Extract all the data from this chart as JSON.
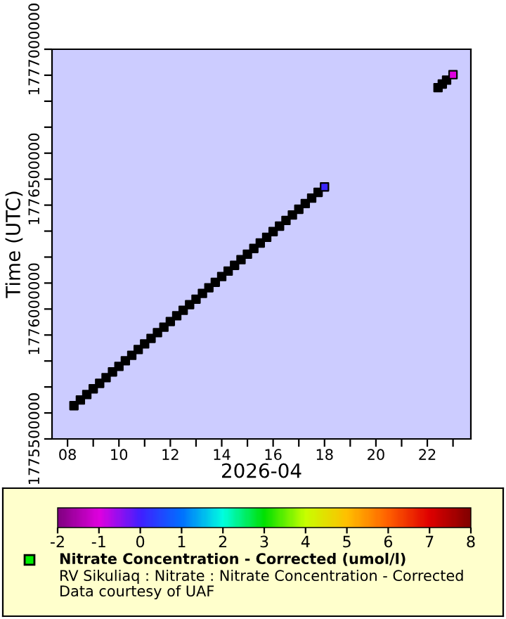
{
  "chart_data": {
    "type": "scatter",
    "xlabel": "2026-04",
    "ylabel": "Time (UTC)",
    "xlim": [
      "2026-04-07T09:30",
      "2026-04-23T16:40"
    ],
    "xticks": [
      {
        "value": "2026-04-08",
        "label": "08"
      },
      {
        "value": "2026-04-09",
        "label": null
      },
      {
        "value": "2026-04-10",
        "label": "10"
      },
      {
        "value": "2026-04-11",
        "label": null
      },
      {
        "value": "2026-04-12",
        "label": "12"
      },
      {
        "value": "2026-04-13",
        "label": null
      },
      {
        "value": "2026-04-14",
        "label": "14"
      },
      {
        "value": "2026-04-15",
        "label": null
      },
      {
        "value": "2026-04-16",
        "label": "16"
      },
      {
        "value": "2026-04-17",
        "label": null
      },
      {
        "value": "2026-04-18",
        "label": "18"
      },
      {
        "value": "2026-04-19",
        "label": null
      },
      {
        "value": "2026-04-20",
        "label": "20"
      },
      {
        "value": "2026-04-21",
        "label": null
      },
      {
        "value": "2026-04-22",
        "label": "22"
      },
      {
        "value": "2026-04-23",
        "label": null
      }
    ],
    "ylim": [
      1775500000,
      1777000000
    ],
    "yticks": [
      1775500000,
      {
        "value": 1775600000,
        "label": null
      },
      {
        "value": 1775700000,
        "label": null
      },
      {
        "value": 1775800000,
        "label": null
      },
      {
        "value": 1775900000,
        "label": null
      },
      1776000000,
      {
        "value": 1776100000,
        "label": null
      },
      {
        "value": 1776200000,
        "label": null
      },
      {
        "value": 1776300000,
        "label": null
      },
      {
        "value": 1776400000,
        "label": null
      },
      1776500000,
      {
        "value": 1776600000,
        "label": null
      },
      {
        "value": 1776700000,
        "label": null
      },
      {
        "value": 1776800000,
        "label": null
      },
      {
        "value": 1776900000,
        "label": null
      },
      1777000000
    ],
    "clim": [
      -2,
      8
    ],
    "cticks": [
      -2,
      -1,
      0,
      1,
      2,
      3,
      4,
      5,
      6,
      7,
      8
    ],
    "marker": "square",
    "grid": false,
    "legend": "bottom",
    "series": [
      {
        "name": "Nitrate Concentration - Corrected (umol/l)",
        "x": [
          "2026-04-08T06:00",
          "2026-04-08T12:00",
          "2026-04-08T18:00",
          "2026-04-09T00:00",
          "2026-04-09T06:00",
          "2026-04-09T12:00",
          "2026-04-09T18:00",
          "2026-04-10T00:00",
          "2026-04-10T06:00",
          "2026-04-10T12:00",
          "2026-04-10T18:00",
          "2026-04-11T00:00",
          "2026-04-11T06:00",
          "2026-04-11T12:00",
          "2026-04-11T18:00",
          "2026-04-12T00:00",
          "2026-04-12T06:00",
          "2026-04-12T12:00",
          "2026-04-12T18:00",
          "2026-04-13T00:00",
          "2026-04-13T06:00",
          "2026-04-13T12:00",
          "2026-04-13T18:00",
          "2026-04-14T00:00",
          "2026-04-14T06:00",
          "2026-04-14T12:00",
          "2026-04-14T18:00",
          "2026-04-15T00:00",
          "2026-04-15T06:00",
          "2026-04-15T12:00",
          "2026-04-15T18:00",
          "2026-04-16T00:00",
          "2026-04-16T06:00",
          "2026-04-16T12:00",
          "2026-04-16T18:00",
          "2026-04-17T00:00",
          "2026-04-17T06:00",
          "2026-04-17T12:00",
          "2026-04-17T18:00",
          "2026-04-18T00:00",
          "2026-04-22T10:00",
          "2026-04-22T14:00",
          "2026-04-22T18:00",
          "2026-04-23T00:00"
        ],
        "values": [
          1775628000,
          1775650000,
          1775671000,
          1775693000,
          1775714000,
          1775736000,
          1775758000,
          1775779000,
          1775801000,
          1775822000,
          1775844000,
          1775866000,
          1775887000,
          1775909000,
          1775930000,
          1775952000,
          1775974000,
          1775995000,
          1776017000,
          1776038000,
          1776060000,
          1776082000,
          1776103000,
          1776125000,
          1776146000,
          1776168000,
          1776190000,
          1776211000,
          1776233000,
          1776254000,
          1776276000,
          1776298000,
          1776319000,
          1776341000,
          1776362000,
          1776384000,
          1776406000,
          1776427000,
          1776449000,
          1776470000,
          1776852000,
          1776866000,
          1776881000,
          1776902000
        ],
        "cvalues": [
          null,
          null,
          null,
          null,
          null,
          null,
          null,
          null,
          null,
          null,
          null,
          null,
          null,
          null,
          null,
          null,
          null,
          null,
          null,
          null,
          null,
          null,
          null,
          null,
          null,
          null,
          null,
          null,
          null,
          null,
          null,
          null,
          null,
          null,
          null,
          null,
          null,
          null,
          null,
          0.1,
          null,
          null,
          null,
          -1
        ]
      }
    ],
    "annotations": [
      "RV Sikuliaq : Nitrate : Nitrate Concentration - Corrected",
      "Data courtesy of UAF"
    ]
  }
}
